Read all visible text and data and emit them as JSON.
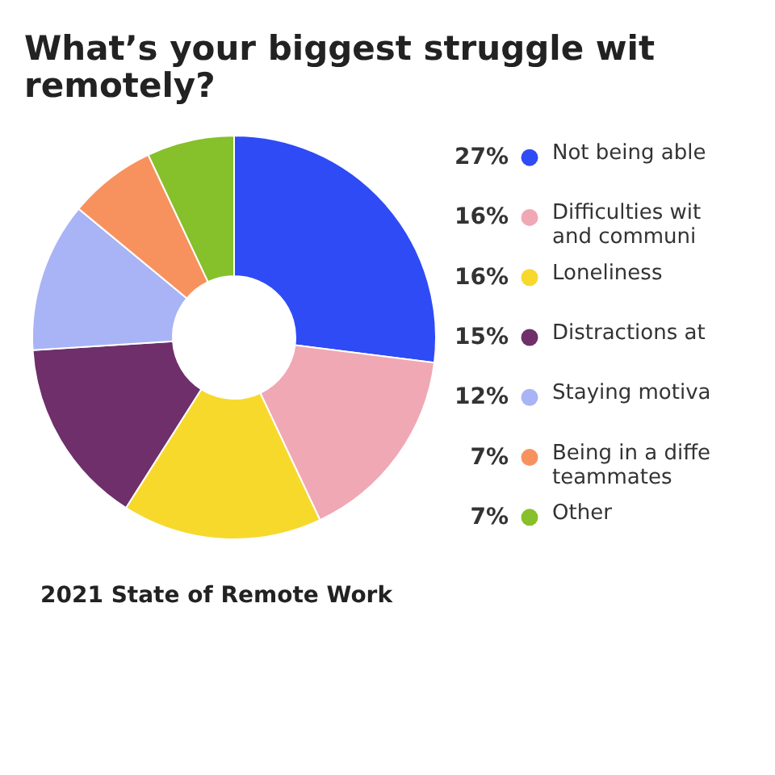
{
  "chart_data": {
    "type": "donut",
    "title": [
      "What’s your biggest struggle wit",
      "remotely?"
    ],
    "categories": [
      "Not being able",
      "Difficulties wit\nand communi",
      "Loneliness",
      "Distractions at",
      "Staying motiva",
      "Being in a diffe\nteammates",
      "Other"
    ],
    "values": [
      27,
      16,
      16,
      15,
      12,
      7,
      7
    ],
    "colors": [
      "#2f4bf5",
      "#f0a8b4",
      "#f7d92c",
      "#6e2f6a",
      "#a8b4f5",
      "#f7925e",
      "#86c02a"
    ],
    "legend": "right",
    "value_labels": [
      "27%",
      "16%",
      "16%",
      "15%",
      "12%",
      "7%",
      "7%"
    ],
    "annotations": [
      "2021 State of Remote Work"
    ]
  }
}
